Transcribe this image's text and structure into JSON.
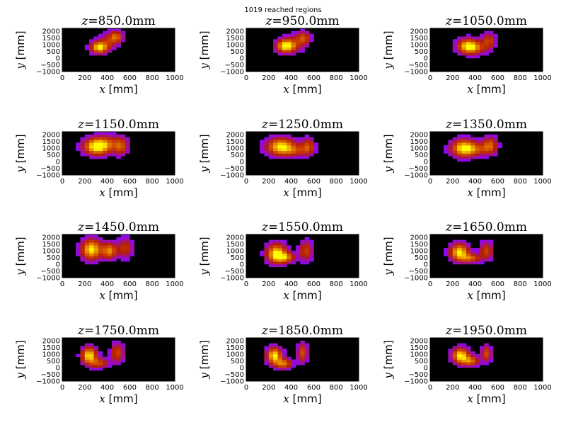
{
  "figure": {
    "suptitle": "1019 reached regions"
  },
  "chart_data": {
    "type": "heatmap",
    "suptitle": "1019 reached regions",
    "panel_title_prefix": "z =",
    "panel_title_unit": "mm",
    "xlabel": "x [mm]",
    "ylabel": "y [mm]",
    "xlim": [
      0,
      1000
    ],
    "ylim": [
      -1000,
      2200
    ],
    "xticks": [
      0,
      200,
      400,
      600,
      800,
      1000
    ],
    "yticks": [
      -1000,
      -500,
      0,
      500,
      1000,
      1500,
      2000
    ],
    "colormap": "gnuplot",
    "background": "#000000",
    "grid": false,
    "cell_size_mm": [
      40,
      200
    ],
    "panels": [
      {
        "z": "850.0",
        "blobs": [
          {
            "cx": 330,
            "cy": 800,
            "sx": 50,
            "sy": 300,
            "a": 1.0
          },
          {
            "cx": 480,
            "cy": 1600,
            "sx": 40,
            "sy": 280,
            "a": 0.55
          },
          {
            "cx": 420,
            "cy": 1300,
            "sx": 60,
            "sy": 400,
            "a": 0.35
          }
        ]
      },
      {
        "z": "950.0",
        "blobs": [
          {
            "cx": 350,
            "cy": 900,
            "sx": 55,
            "sy": 320,
            "a": 1.0
          },
          {
            "cx": 510,
            "cy": 1500,
            "sx": 40,
            "sy": 320,
            "a": 0.5
          },
          {
            "cx": 430,
            "cy": 1100,
            "sx": 70,
            "sy": 450,
            "a": 0.3
          }
        ]
      },
      {
        "z": "1050.0",
        "blobs": [
          {
            "cx": 340,
            "cy": 900,
            "sx": 65,
            "sy": 360,
            "a": 1.0
          },
          {
            "cx": 520,
            "cy": 1300,
            "sx": 40,
            "sy": 380,
            "a": 0.5
          },
          {
            "cx": 420,
            "cy": 700,
            "sx": 70,
            "sy": 300,
            "a": 0.3
          }
        ]
      },
      {
        "z": "1150.0",
        "blobs": [
          {
            "cx": 310,
            "cy": 1100,
            "sx": 80,
            "sy": 400,
            "a": 1.0
          },
          {
            "cx": 520,
            "cy": 1100,
            "sx": 40,
            "sy": 420,
            "a": 0.5
          },
          {
            "cx": 400,
            "cy": 1400,
            "sx": 100,
            "sy": 400,
            "a": 0.35
          }
        ]
      },
      {
        "z": "1250.0",
        "blobs": [
          {
            "cx": 310,
            "cy": 1100,
            "sx": 85,
            "sy": 420,
            "a": 1.0
          },
          {
            "cx": 550,
            "cy": 1100,
            "sx": 40,
            "sy": 420,
            "a": 0.55
          },
          {
            "cx": 440,
            "cy": 800,
            "sx": 70,
            "sy": 280,
            "a": 0.35
          }
        ]
      },
      {
        "z": "1350.0",
        "blobs": [
          {
            "cx": 300,
            "cy": 1000,
            "sx": 75,
            "sy": 420,
            "a": 1.0
          },
          {
            "cx": 530,
            "cy": 1200,
            "sx": 45,
            "sy": 420,
            "a": 0.6
          },
          {
            "cx": 420,
            "cy": 900,
            "sx": 80,
            "sy": 300,
            "a": 0.35
          }
        ]
      },
      {
        "z": "1450.0",
        "blobs": [
          {
            "cx": 260,
            "cy": 1100,
            "sx": 60,
            "sy": 500,
            "a": 1.0
          },
          {
            "cx": 420,
            "cy": 1000,
            "sx": 45,
            "sy": 400,
            "a": 0.75
          },
          {
            "cx": 560,
            "cy": 1200,
            "sx": 45,
            "sy": 500,
            "a": 0.45
          }
        ]
      },
      {
        "z": "1550.0",
        "blobs": [
          {
            "cx": 270,
            "cy": 800,
            "sx": 60,
            "sy": 480,
            "a": 1.0
          },
          {
            "cx": 350,
            "cy": 500,
            "sx": 60,
            "sy": 250,
            "a": 0.6
          },
          {
            "cx": 530,
            "cy": 1000,
            "sx": 40,
            "sy": 500,
            "a": 0.5
          }
        ]
      },
      {
        "z": "1650.0",
        "blobs": [
          {
            "cx": 260,
            "cy": 900,
            "sx": 55,
            "sy": 420,
            "a": 1.0
          },
          {
            "cx": 360,
            "cy": 450,
            "sx": 60,
            "sy": 220,
            "a": 0.6
          },
          {
            "cx": 500,
            "cy": 1000,
            "sx": 40,
            "sy": 450,
            "a": 0.5
          }
        ]
      },
      {
        "z": "1750.0",
        "blobs": [
          {
            "cx": 240,
            "cy": 900,
            "sx": 45,
            "sy": 420,
            "a": 1.0
          },
          {
            "cx": 330,
            "cy": 350,
            "sx": 55,
            "sy": 250,
            "a": 0.5
          },
          {
            "cx": 490,
            "cy": 1100,
            "sx": 40,
            "sy": 500,
            "a": 0.5
          }
        ]
      },
      {
        "z": "1850.0",
        "blobs": [
          {
            "cx": 250,
            "cy": 900,
            "sx": 45,
            "sy": 400,
            "a": 1.0
          },
          {
            "cx": 330,
            "cy": 300,
            "sx": 50,
            "sy": 250,
            "a": 0.7
          },
          {
            "cx": 500,
            "cy": 1100,
            "sx": 30,
            "sy": 500,
            "a": 0.55
          }
        ]
      },
      {
        "z": "1950.0",
        "blobs": [
          {
            "cx": 270,
            "cy": 900,
            "sx": 50,
            "sy": 380,
            "a": 1.0
          },
          {
            "cx": 360,
            "cy": 500,
            "sx": 50,
            "sy": 250,
            "a": 0.65
          },
          {
            "cx": 500,
            "cy": 1050,
            "sx": 30,
            "sy": 400,
            "a": 0.55
          }
        ]
      }
    ]
  }
}
